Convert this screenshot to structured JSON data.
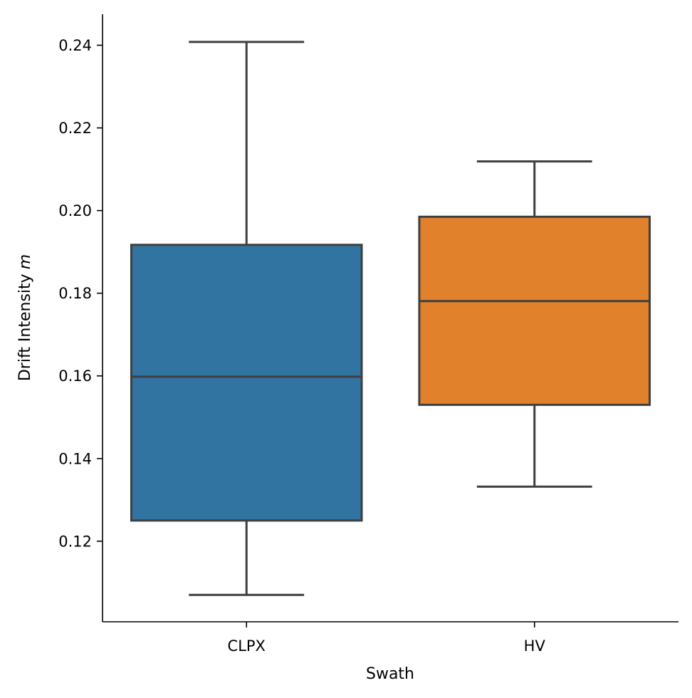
{
  "chart_data": {
    "type": "box",
    "xlabel": "Swath",
    "ylabel": "Drift Intensity",
    "ylabel_variable": "m",
    "ylim": [
      0.1005,
      0.2475
    ],
    "yticks": [
      0.12,
      0.14,
      0.16,
      0.18,
      0.2,
      0.22,
      0.24
    ],
    "ytick_labels": [
      "0.12",
      "0.14",
      "0.16",
      "0.18",
      "0.20",
      "0.22",
      "0.24"
    ],
    "grid": false,
    "categories": [
      "CLPX",
      "HV"
    ],
    "series": [
      {
        "category": "CLPX",
        "color": "#3274a1",
        "whisker_low": 0.107,
        "q1": 0.125,
        "median": 0.1598,
        "q3": 0.1917,
        "whisker_high": 0.2408
      },
      {
        "category": "HV",
        "color": "#e1812c",
        "whisker_low": 0.1332,
        "q1": 0.153,
        "median": 0.1781,
        "q3": 0.1985,
        "whisker_high": 0.2119
      }
    ]
  }
}
